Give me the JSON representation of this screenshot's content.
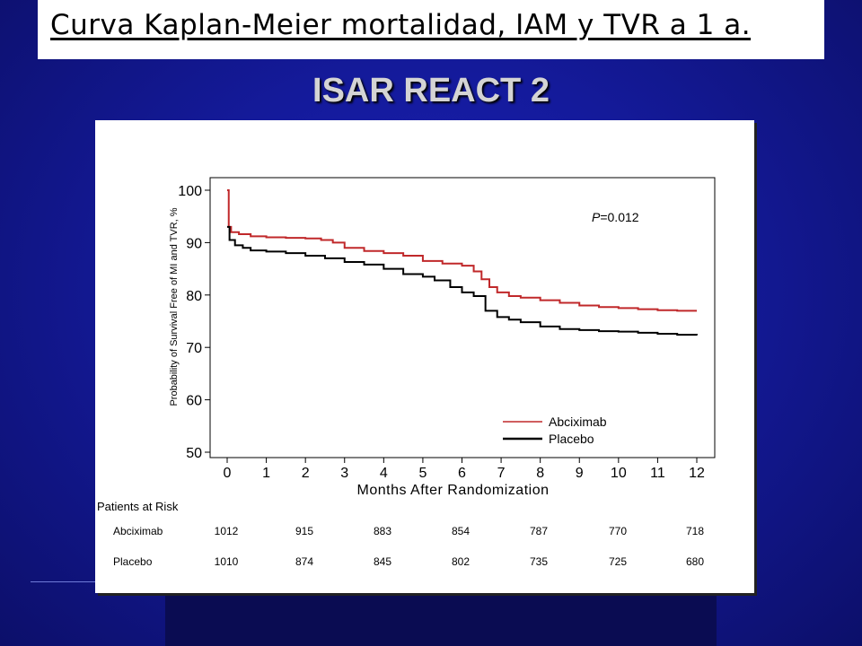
{
  "slide": {
    "title": "Curva Kaplan-Meier mortalidad, IAM y TVR a 1 a.",
    "subtitle": "ISAR REACT 2"
  },
  "chart_data": {
    "type": "line",
    "xlabel": "Months After Randomization",
    "ylabel": "Probability of Survival Free of MI and TVR, %",
    "xlim": [
      0,
      12
    ],
    "ylim": [
      50,
      100
    ],
    "x_ticks": [
      0,
      1,
      2,
      3,
      4,
      5,
      6,
      7,
      8,
      9,
      10,
      11,
      12
    ],
    "y_ticks": [
      50,
      60,
      70,
      80,
      90,
      100
    ],
    "annotation": {
      "p_label": "P",
      "p_value": "=0.012"
    },
    "legend_position": "bottom-right",
    "series": [
      {
        "name": "Abciximab",
        "color": "#c0282a",
        "points": [
          [
            0,
            100
          ],
          [
            0.02,
            100
          ],
          [
            0.04,
            93
          ],
          [
            0.1,
            92
          ],
          [
            0.3,
            91.6
          ],
          [
            0.6,
            91.2
          ],
          [
            1,
            91
          ],
          [
            1.5,
            90.9
          ],
          [
            2,
            90.8
          ],
          [
            2.4,
            90.5
          ],
          [
            2.7,
            90
          ],
          [
            3,
            89
          ],
          [
            3.5,
            88.4
          ],
          [
            4,
            88
          ],
          [
            4.5,
            87.5
          ],
          [
            5,
            86.5
          ],
          [
            5.5,
            86
          ],
          [
            6,
            85.6
          ],
          [
            6.3,
            84.5
          ],
          [
            6.5,
            83
          ],
          [
            6.7,
            81.5
          ],
          [
            6.9,
            80.5
          ],
          [
            7.2,
            79.8
          ],
          [
            7.5,
            79.5
          ],
          [
            8,
            79
          ],
          [
            8.5,
            78.5
          ],
          [
            9,
            78
          ],
          [
            9.5,
            77.7
          ],
          [
            10,
            77.5
          ],
          [
            10.5,
            77.3
          ],
          [
            11,
            77.1
          ],
          [
            11.5,
            77
          ],
          [
            12,
            77
          ]
        ]
      },
      {
        "name": "Placebo",
        "color": "#000000",
        "points": [
          [
            0,
            93
          ],
          [
            0.03,
            93
          ],
          [
            0.06,
            90.5
          ],
          [
            0.2,
            89.5
          ],
          [
            0.4,
            89
          ],
          [
            0.6,
            88.5
          ],
          [
            1,
            88.3
          ],
          [
            1.5,
            88
          ],
          [
            2,
            87.5
          ],
          [
            2.5,
            87
          ],
          [
            3,
            86.3
          ],
          [
            3.5,
            85.8
          ],
          [
            4,
            85
          ],
          [
            4.5,
            84
          ],
          [
            5,
            83.5
          ],
          [
            5.3,
            82.8
          ],
          [
            5.7,
            81.5
          ],
          [
            6,
            80.5
          ],
          [
            6.3,
            79.8
          ],
          [
            6.6,
            77
          ],
          [
            6.9,
            75.8
          ],
          [
            7.2,
            75.3
          ],
          [
            7.5,
            74.8
          ],
          [
            8,
            74
          ],
          [
            8.5,
            73.5
          ],
          [
            9,
            73.3
          ],
          [
            9.5,
            73.1
          ],
          [
            10,
            73
          ],
          [
            10.5,
            72.8
          ],
          [
            11,
            72.6
          ],
          [
            11.5,
            72.4
          ],
          [
            12,
            72.3
          ]
        ]
      }
    ],
    "risk_table": {
      "title": "Patients at Risk",
      "months": [
        0,
        2,
        4,
        6,
        8,
        10,
        12
      ],
      "rows": [
        {
          "label": "Abciximab",
          "values": [
            "1012",
            "915",
            "883",
            "854",
            "787",
            "770",
            "718"
          ]
        },
        {
          "label": "Placebo",
          "values": [
            "1010",
            "874",
            "845",
            "802",
            "735",
            "725",
            "680"
          ]
        }
      ]
    }
  }
}
